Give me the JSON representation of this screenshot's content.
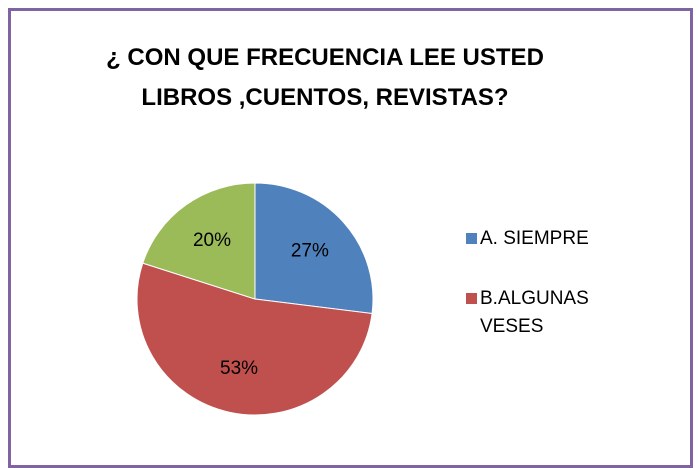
{
  "chart_data": {
    "type": "pie",
    "title": "¿ CON QUE FRECUENCIA LEE USTED LIBROS ,CUENTOS, REVISTAS?",
    "categories": [
      "A. SIEMPRE",
      "B.ALGUNAS VESES",
      null
    ],
    "values": [
      27,
      53,
      20
    ],
    "value_labels": [
      "27%",
      "53%",
      "20%"
    ],
    "colors": [
      "#4f81bd",
      "#c0504d",
      "#9bbb59"
    ],
    "legend": "right"
  }
}
